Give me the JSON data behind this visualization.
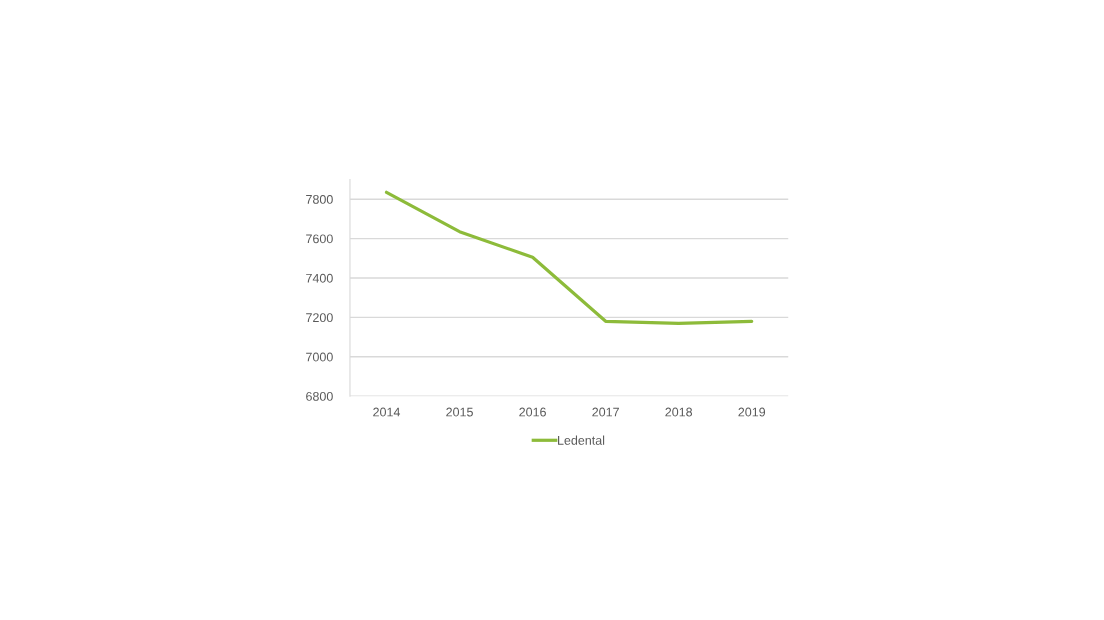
{
  "chart_data": {
    "type": "line",
    "categories": [
      "2014",
      "2015",
      "2016",
      "2017",
      "2018",
      "2019"
    ],
    "series": [
      {
        "name": "Ledental",
        "color": "#8dbb3a",
        "values": [
          7835,
          7635,
          7505,
          7180,
          7170,
          7180
        ]
      }
    ],
    "ylim": [
      6800,
      7900
    ],
    "yticks": [
      6800,
      7000,
      7200,
      7400,
      7600,
      7800
    ],
    "grid": "y",
    "legend": "bottom",
    "marker": "none",
    "line_style": "solid"
  }
}
